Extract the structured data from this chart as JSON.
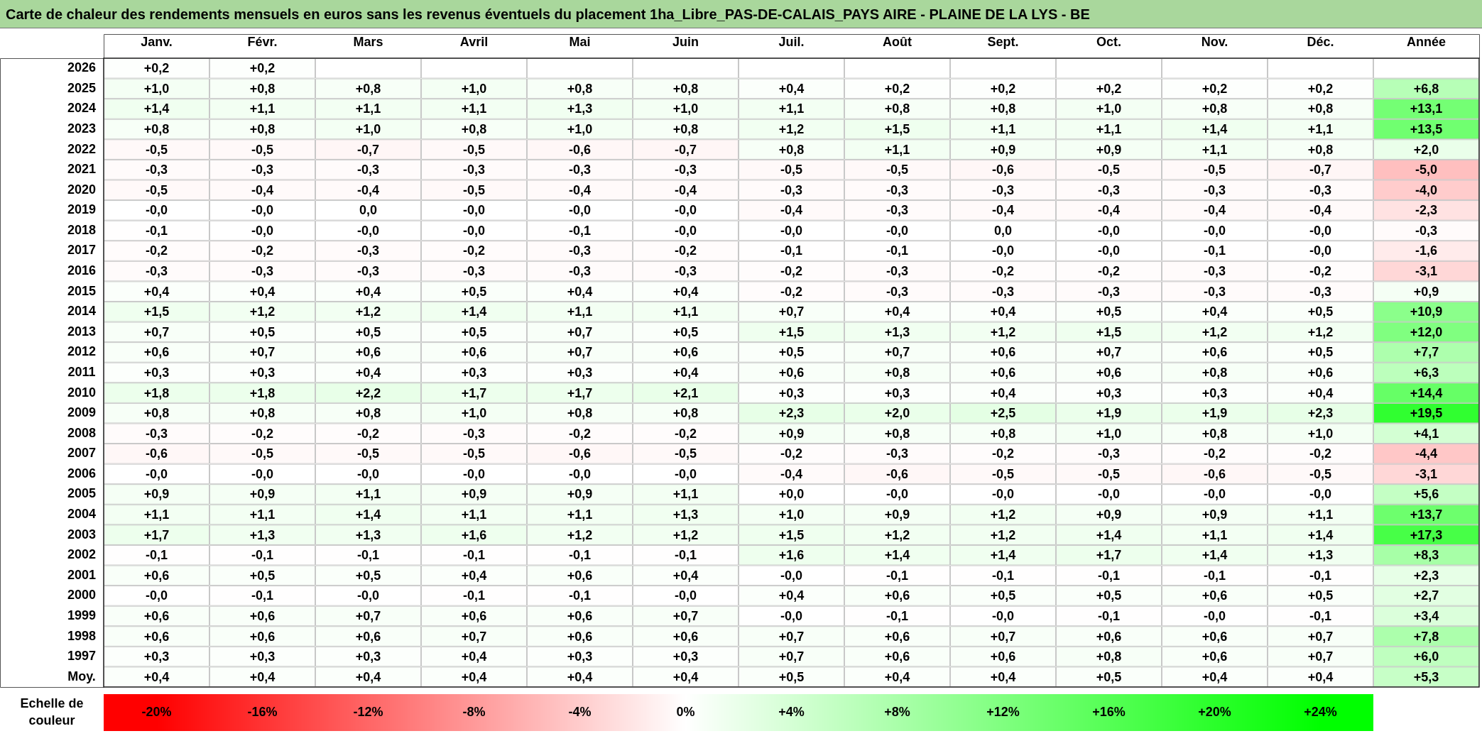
{
  "chart_data": {
    "type": "heatmap",
    "title": "Carte de chaleur des rendements mensuels en euros sans les revenus éventuels du placement 1ha_Libre_PAS-DE-CALAIS_PAYS AIRE - PLAINE DE LA LYS - BE",
    "categories": [
      "Janv.",
      "Févr.",
      "Mars",
      "Avril",
      "Mai",
      "Juin",
      "Juil.",
      "Août",
      "Sept.",
      "Oct.",
      "Nov.",
      "Déc.",
      "Année"
    ],
    "y_categories": [
      "2026",
      "2025",
      "2024",
      "2023",
      "2022",
      "2021",
      "2020",
      "2019",
      "2018",
      "2017",
      "2016",
      "2015",
      "2014",
      "2013",
      "2012",
      "2011",
      "2010",
      "2009",
      "2008",
      "2007",
      "2006",
      "2005",
      "2004",
      "2003",
      "2002",
      "2001",
      "2000",
      "1999",
      "1998",
      "1997",
      "Moy."
    ],
    "cells": [
      [
        0.2,
        0.2,
        null,
        null,
        null,
        null,
        null,
        null,
        null,
        null,
        null,
        null,
        null
      ],
      [
        1.0,
        0.8,
        0.8,
        1.0,
        0.8,
        0.8,
        0.4,
        0.2,
        0.2,
        0.2,
        0.2,
        0.2,
        6.8
      ],
      [
        1.4,
        1.1,
        1.1,
        1.1,
        1.3,
        1.0,
        1.1,
        0.8,
        0.8,
        1.0,
        0.8,
        0.8,
        13.1
      ],
      [
        0.8,
        0.8,
        1.0,
        0.8,
        1.0,
        0.8,
        1.2,
        1.5,
        1.1,
        1.1,
        1.4,
        1.1,
        13.5
      ],
      [
        -0.5,
        -0.5,
        -0.7,
        -0.5,
        -0.6,
        -0.7,
        0.8,
        1.1,
        0.9,
        0.9,
        1.1,
        0.8,
        2.0
      ],
      [
        -0.3,
        -0.3,
        -0.3,
        -0.3,
        -0.3,
        -0.3,
        -0.5,
        -0.5,
        -0.6,
        -0.5,
        -0.5,
        -0.7,
        -5.0
      ],
      [
        -0.5,
        -0.4,
        -0.4,
        -0.5,
        -0.4,
        -0.4,
        -0.3,
        -0.3,
        -0.3,
        -0.3,
        -0.3,
        -0.3,
        -4.0
      ],
      [
        0,
        0,
        0,
        0,
        0,
        0,
        -0.4,
        -0.3,
        -0.4,
        -0.4,
        -0.4,
        -0.4,
        -2.3
      ],
      [
        -0.1,
        0,
        0,
        0,
        -0.1,
        0,
        0,
        0,
        0,
        0,
        0,
        0,
        -0.3
      ],
      [
        -0.2,
        -0.2,
        -0.3,
        -0.2,
        -0.3,
        -0.2,
        -0.1,
        -0.1,
        0,
        0,
        -0.1,
        0,
        -1.6
      ],
      [
        -0.3,
        -0.3,
        -0.3,
        -0.3,
        -0.3,
        -0.3,
        -0.2,
        -0.3,
        -0.2,
        -0.2,
        -0.3,
        -0.2,
        -3.1
      ],
      [
        0.4,
        0.4,
        0.4,
        0.5,
        0.4,
        0.4,
        -0.2,
        -0.3,
        -0.3,
        -0.3,
        -0.3,
        -0.3,
        0.9
      ],
      [
        1.5,
        1.2,
        1.2,
        1.4,
        1.1,
        1.1,
        0.7,
        0.4,
        0.4,
        0.5,
        0.4,
        0.5,
        10.9
      ],
      [
        0.7,
        0.5,
        0.5,
        0.5,
        0.7,
        0.5,
        1.5,
        1.3,
        1.2,
        1.5,
        1.2,
        1.2,
        12.0
      ],
      [
        0.6,
        0.7,
        0.6,
        0.6,
        0.7,
        0.6,
        0.5,
        0.7,
        0.6,
        0.7,
        0.6,
        0.5,
        7.7
      ],
      [
        0.3,
        0.3,
        0.4,
        0.3,
        0.3,
        0.4,
        0.6,
        0.8,
        0.6,
        0.6,
        0.8,
        0.6,
        6.3
      ],
      [
        1.8,
        1.8,
        2.2,
        1.7,
        1.7,
        2.1,
        0.3,
        0.3,
        0.4,
        0.3,
        0.3,
        0.4,
        14.4
      ],
      [
        0.8,
        0.8,
        0.8,
        1.0,
        0.8,
        0.8,
        2.3,
        2.0,
        2.5,
        1.9,
        1.9,
        2.3,
        19.5
      ],
      [
        -0.3,
        -0.2,
        -0.2,
        -0.3,
        -0.2,
        -0.2,
        0.9,
        0.8,
        0.8,
        1.0,
        0.8,
        1.0,
        4.1
      ],
      [
        -0.6,
        -0.5,
        -0.5,
        -0.5,
        -0.6,
        -0.5,
        -0.2,
        -0.3,
        -0.2,
        -0.3,
        -0.2,
        -0.2,
        -4.4
      ],
      [
        0,
        0,
        0,
        0,
        0,
        0,
        -0.4,
        -0.6,
        -0.5,
        -0.5,
        -0.6,
        -0.5,
        -3.1
      ],
      [
        0.9,
        0.9,
        1.1,
        0.9,
        0.9,
        1.1,
        0,
        0,
        0,
        0,
        0,
        0,
        5.6
      ],
      [
        1.1,
        1.1,
        1.4,
        1.1,
        1.1,
        1.3,
        1.0,
        0.9,
        1.2,
        0.9,
        0.9,
        1.1,
        13.7
      ],
      [
        1.7,
        1.3,
        1.3,
        1.6,
        1.2,
        1.2,
        1.5,
        1.2,
        1.2,
        1.4,
        1.1,
        1.4,
        17.3
      ],
      [
        -0.1,
        -0.1,
        -0.1,
        -0.1,
        -0.1,
        -0.1,
        1.6,
        1.4,
        1.4,
        1.7,
        1.4,
        1.3,
        8.3
      ],
      [
        0.6,
        0.5,
        0.5,
        0.4,
        0.6,
        0.4,
        0,
        -0.1,
        -0.1,
        -0.1,
        -0.1,
        -0.1,
        2.3
      ],
      [
        0,
        -0.1,
        0,
        -0.1,
        -0.1,
        0,
        0.4,
        0.6,
        0.5,
        0.5,
        0.6,
        0.5,
        2.7
      ],
      [
        0.6,
        0.6,
        0.7,
        0.6,
        0.6,
        0.7,
        0,
        -0.1,
        0,
        -0.1,
        0,
        -0.1,
        3.4
      ],
      [
        0.6,
        0.6,
        0.6,
        0.7,
        0.6,
        0.6,
        0.7,
        0.6,
        0.7,
        0.6,
        0.6,
        0.7,
        7.8
      ],
      [
        0.3,
        0.3,
        0.3,
        0.4,
        0.3,
        0.3,
        0.7,
        0.6,
        0.6,
        0.8,
        0.6,
        0.7,
        6.0
      ],
      [
        0.4,
        0.4,
        0.4,
        0.4,
        0.4,
        0.4,
        0.5,
        0.4,
        0.4,
        0.5,
        0.4,
        0.4,
        5.3
      ]
    ],
    "cell_labels": [
      [
        "+0,2",
        "+0,2",
        null,
        null,
        null,
        null,
        null,
        null,
        null,
        null,
        null,
        null,
        null
      ],
      [
        "+1,0",
        "+0,8",
        "+0,8",
        "+1,0",
        "+0,8",
        "+0,8",
        "+0,4",
        "+0,2",
        "+0,2",
        "+0,2",
        "+0,2",
        "+0,2",
        "+6,8"
      ],
      [
        "+1,4",
        "+1,1",
        "+1,1",
        "+1,1",
        "+1,3",
        "+1,0",
        "+1,1",
        "+0,8",
        "+0,8",
        "+1,0",
        "+0,8",
        "+0,8",
        "+13,1"
      ],
      [
        "+0,8",
        "+0,8",
        "+1,0",
        "+0,8",
        "+1,0",
        "+0,8",
        "+1,2",
        "+1,5",
        "+1,1",
        "+1,1",
        "+1,4",
        "+1,1",
        "+13,5"
      ],
      [
        "-0,5",
        "-0,5",
        "-0,7",
        "-0,5",
        "-0,6",
        "-0,7",
        "+0,8",
        "+1,1",
        "+0,9",
        "+0,9",
        "+1,1",
        "+0,8",
        "+2,0"
      ],
      [
        "-0,3",
        "-0,3",
        "-0,3",
        "-0,3",
        "-0,3",
        "-0,3",
        "-0,5",
        "-0,5",
        "-0,6",
        "-0,5",
        "-0,5",
        "-0,7",
        "-5,0"
      ],
      [
        "-0,5",
        "-0,4",
        "-0,4",
        "-0,5",
        "-0,4",
        "-0,4",
        "-0,3",
        "-0,3",
        "-0,3",
        "-0,3",
        "-0,3",
        "-0,3",
        "-4,0"
      ],
      [
        "-0,0",
        "-0,0",
        "0,0",
        "-0,0",
        "-0,0",
        "-0,0",
        "-0,4",
        "-0,3",
        "-0,4",
        "-0,4",
        "-0,4",
        "-0,4",
        "-2,3"
      ],
      [
        "-0,1",
        "-0,0",
        "-0,0",
        "-0,0",
        "-0,1",
        "-0,0",
        "-0,0",
        "-0,0",
        "0,0",
        "-0,0",
        "-0,0",
        "-0,0",
        "-0,3"
      ],
      [
        "-0,2",
        "-0,2",
        "-0,3",
        "-0,2",
        "-0,3",
        "-0,2",
        "-0,1",
        "-0,1",
        "-0,0",
        "-0,0",
        "-0,1",
        "-0,0",
        "-1,6"
      ],
      [
        "-0,3",
        "-0,3",
        "-0,3",
        "-0,3",
        "-0,3",
        "-0,3",
        "-0,2",
        "-0,3",
        "-0,2",
        "-0,2",
        "-0,3",
        "-0,2",
        "-3,1"
      ],
      [
        "+0,4",
        "+0,4",
        "+0,4",
        "+0,5",
        "+0,4",
        "+0,4",
        "-0,2",
        "-0,3",
        "-0,3",
        "-0,3",
        "-0,3",
        "-0,3",
        "+0,9"
      ],
      [
        "+1,5",
        "+1,2",
        "+1,2",
        "+1,4",
        "+1,1",
        "+1,1",
        "+0,7",
        "+0,4",
        "+0,4",
        "+0,5",
        "+0,4",
        "+0,5",
        "+10,9"
      ],
      [
        "+0,7",
        "+0,5",
        "+0,5",
        "+0,5",
        "+0,7",
        "+0,5",
        "+1,5",
        "+1,3",
        "+1,2",
        "+1,5",
        "+1,2",
        "+1,2",
        "+12,0"
      ],
      [
        "+0,6",
        "+0,7",
        "+0,6",
        "+0,6",
        "+0,7",
        "+0,6",
        "+0,5",
        "+0,7",
        "+0,6",
        "+0,7",
        "+0,6",
        "+0,5",
        "+7,7"
      ],
      [
        "+0,3",
        "+0,3",
        "+0,4",
        "+0,3",
        "+0,3",
        "+0,4",
        "+0,6",
        "+0,8",
        "+0,6",
        "+0,6",
        "+0,8",
        "+0,6",
        "+6,3"
      ],
      [
        "+1,8",
        "+1,8",
        "+2,2",
        "+1,7",
        "+1,7",
        "+2,1",
        "+0,3",
        "+0,3",
        "+0,4",
        "+0,3",
        "+0,3",
        "+0,4",
        "+14,4"
      ],
      [
        "+0,8",
        "+0,8",
        "+0,8",
        "+1,0",
        "+0,8",
        "+0,8",
        "+2,3",
        "+2,0",
        "+2,5",
        "+1,9",
        "+1,9",
        "+2,3",
        "+19,5"
      ],
      [
        "-0,3",
        "-0,2",
        "-0,2",
        "-0,3",
        "-0,2",
        "-0,2",
        "+0,9",
        "+0,8",
        "+0,8",
        "+1,0",
        "+0,8",
        "+1,0",
        "+4,1"
      ],
      [
        "-0,6",
        "-0,5",
        "-0,5",
        "-0,5",
        "-0,6",
        "-0,5",
        "-0,2",
        "-0,3",
        "-0,2",
        "-0,3",
        "-0,2",
        "-0,2",
        "-4,4"
      ],
      [
        "-0,0",
        "-0,0",
        "-0,0",
        "-0,0",
        "-0,0",
        "-0,0",
        "-0,4",
        "-0,6",
        "-0,5",
        "-0,5",
        "-0,6",
        "-0,5",
        "-3,1"
      ],
      [
        "+0,9",
        "+0,9",
        "+1,1",
        "+0,9",
        "+0,9",
        "+1,1",
        "+0,0",
        "-0,0",
        "-0,0",
        "-0,0",
        "-0,0",
        "-0,0",
        "+5,6"
      ],
      [
        "+1,1",
        "+1,1",
        "+1,4",
        "+1,1",
        "+1,1",
        "+1,3",
        "+1,0",
        "+0,9",
        "+1,2",
        "+0,9",
        "+0,9",
        "+1,1",
        "+13,7"
      ],
      [
        "+1,7",
        "+1,3",
        "+1,3",
        "+1,6",
        "+1,2",
        "+1,2",
        "+1,5",
        "+1,2",
        "+1,2",
        "+1,4",
        "+1,1",
        "+1,4",
        "+17,3"
      ],
      [
        "-0,1",
        "-0,1",
        "-0,1",
        "-0,1",
        "-0,1",
        "-0,1",
        "+1,6",
        "+1,4",
        "+1,4",
        "+1,7",
        "+1,4",
        "+1,3",
        "+8,3"
      ],
      [
        "+0,6",
        "+0,5",
        "+0,5",
        "+0,4",
        "+0,6",
        "+0,4",
        "-0,0",
        "-0,1",
        "-0,1",
        "-0,1",
        "-0,1",
        "-0,1",
        "+2,3"
      ],
      [
        "-0,0",
        "-0,1",
        "-0,0",
        "-0,1",
        "-0,1",
        "-0,0",
        "+0,4",
        "+0,6",
        "+0,5",
        "+0,5",
        "+0,6",
        "+0,5",
        "+2,7"
      ],
      [
        "+0,6",
        "+0,6",
        "+0,7",
        "+0,6",
        "+0,6",
        "+0,7",
        "-0,0",
        "-0,1",
        "-0,0",
        "-0,1",
        "-0,0",
        "-0,1",
        "+3,4"
      ],
      [
        "+0,6",
        "+0,6",
        "+0,6",
        "+0,7",
        "+0,6",
        "+0,6",
        "+0,7",
        "+0,6",
        "+0,7",
        "+0,6",
        "+0,6",
        "+0,7",
        "+7,8"
      ],
      [
        "+0,3",
        "+0,3",
        "+0,3",
        "+0,4",
        "+0,3",
        "+0,3",
        "+0,7",
        "+0,6",
        "+0,6",
        "+0,8",
        "+0,6",
        "+0,7",
        "+6,0"
      ],
      [
        "+0,4",
        "+0,4",
        "+0,4",
        "+0,4",
        "+0,4",
        "+0,4",
        "+0,5",
        "+0,4",
        "+0,4",
        "+0,5",
        "+0,4",
        "+0,4",
        "+5,3"
      ]
    ],
    "clim": [
      -20,
      24
    ],
    "cticks": [
      {
        "value": -20,
        "label": "-20%"
      },
      {
        "value": -16,
        "label": "-16%"
      },
      {
        "value": -12,
        "label": "-12%"
      },
      {
        "value": -8,
        "label": "-8%"
      },
      {
        "value": -4,
        "label": "-4%"
      },
      {
        "value": 0,
        "label": "0%"
      },
      {
        "value": 4,
        "label": "+4%"
      },
      {
        "value": 8,
        "label": "+8%"
      },
      {
        "value": 12,
        "label": "+12%"
      },
      {
        "value": 16,
        "label": "+16%"
      },
      {
        "value": 20,
        "label": "+20%"
      },
      {
        "value": 24,
        "label": "+24%"
      }
    ],
    "clabel": "Echelle de couleur"
  }
}
